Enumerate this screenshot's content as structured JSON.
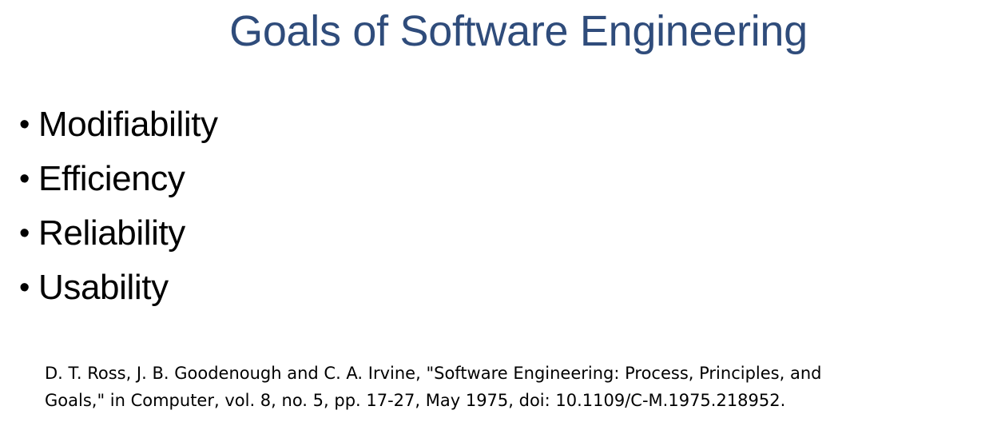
{
  "slide": {
    "title": "Goals of Software Engineering",
    "bullets": [
      "Modifiability",
      "Efficiency",
      "Reliability",
      "Usability"
    ],
    "citation": {
      "line1": "D. T. Ross, J. B. Goodenough and C. A. Irvine, \"Software Engineering: Process, Principles, and",
      "line2": "Goals,\" in Computer, vol. 8, no. 5, pp. 17-27, May 1975, doi: 10.1109/C-M.1975.218952."
    }
  },
  "colors": {
    "title": "#2f4c7b",
    "text": "#000000",
    "background": "#ffffff"
  }
}
